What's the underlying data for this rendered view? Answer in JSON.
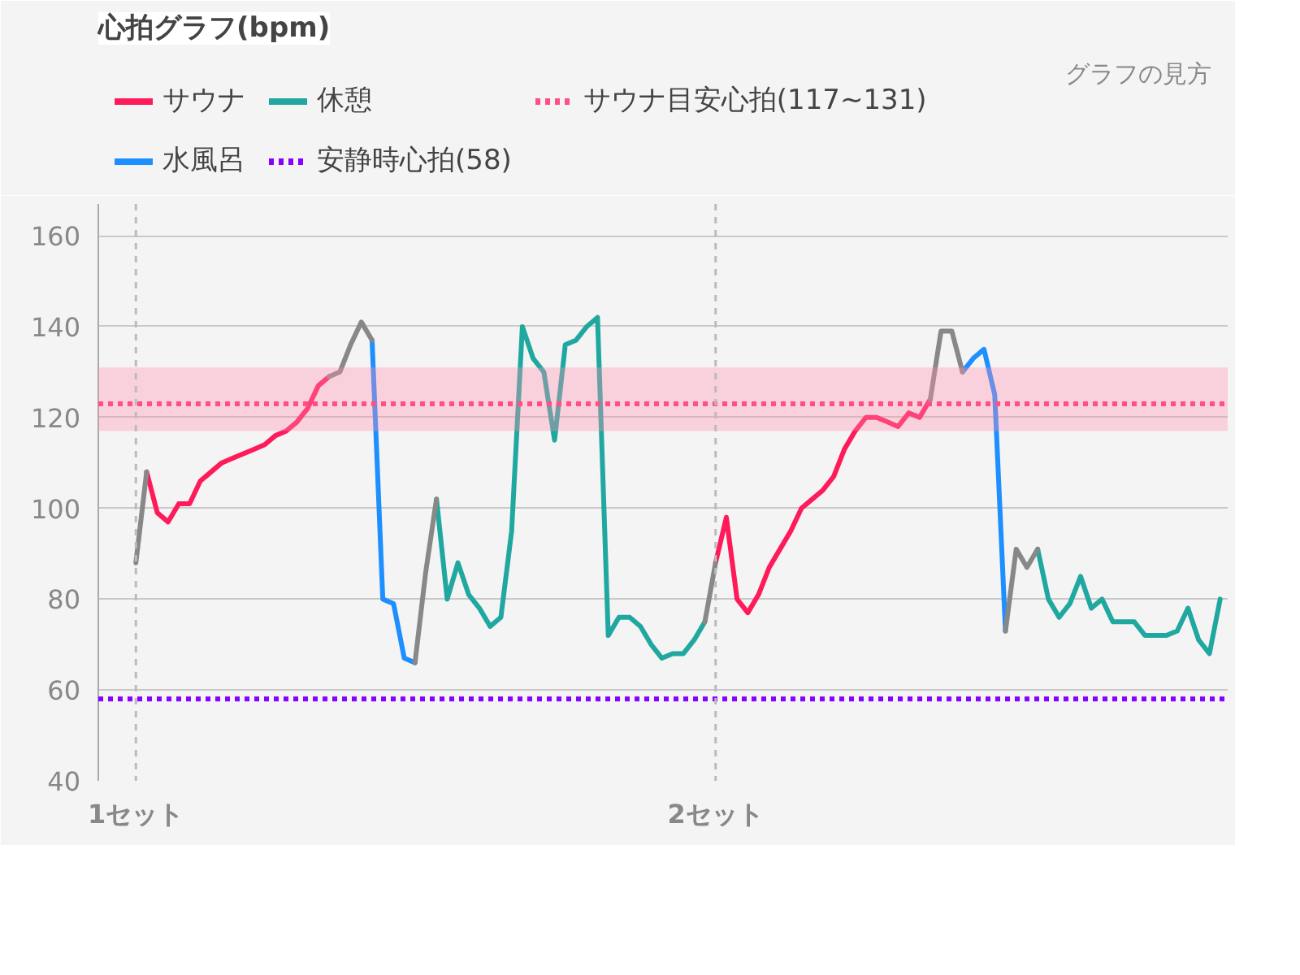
{
  "chart_data": {
    "type": "line",
    "title": "心拍グラフ(bpm)",
    "annotations": [
      "グラフの見方"
    ],
    "categories": [
      "1セット",
      null,
      null,
      null,
      null,
      null,
      null,
      null,
      null,
      null,
      null,
      null,
      null,
      null,
      null,
      null,
      null,
      null,
      null,
      null,
      null,
      null,
      null,
      null,
      null,
      null,
      null,
      null,
      null,
      null,
      null,
      null,
      null,
      null,
      null,
      null,
      null,
      null,
      null,
      null,
      null,
      null,
      null,
      null,
      null,
      null,
      null,
      null,
      null,
      null,
      null,
      null,
      null,
      null,
      "2セット",
      null,
      null,
      null,
      null,
      null,
      null,
      null,
      null,
      null,
      null,
      null,
      null,
      null,
      null,
      null,
      null,
      null,
      null,
      null,
      null,
      null,
      null,
      null,
      null,
      null,
      null,
      null,
      null,
      null,
      null,
      null,
      null,
      null,
      null,
      null,
      null,
      null,
      null,
      null,
      null,
      null,
      null,
      null,
      null,
      null,
      null,
      null
    ],
    "ylim": [
      40,
      167
    ],
    "yticks": [
      40,
      60,
      80,
      100,
      120,
      140,
      160
    ],
    "grid": "y",
    "legend": "top",
    "line_style": "solid",
    "series": [
      {
        "name": "サウナ",
        "color": "#ff1a5a",
        "values": [
          null,
          108,
          99,
          97,
          101,
          101,
          106,
          108,
          110,
          111,
          112,
          113,
          114,
          116,
          117,
          119,
          122,
          127,
          129,
          null,
          null,
          null,
          null,
          null,
          null,
          null,
          null,
          null,
          null,
          null,
          null,
          null,
          null,
          null,
          null,
          null,
          null,
          null,
          null,
          null,
          null,
          null,
          null,
          null,
          null,
          null,
          null,
          null,
          null,
          null,
          null,
          null,
          null,
          null,
          88,
          98,
          80,
          77,
          81,
          87,
          91,
          95,
          100,
          102,
          104,
          107,
          113,
          117,
          120,
          120,
          119,
          118,
          121,
          120,
          124,
          null,
          null,
          null,
          null,
          null,
          null,
          null,
          null,
          null,
          null,
          null,
          null,
          null,
          null,
          null,
          null,
          null,
          null,
          null,
          null,
          null,
          null,
          null,
          null,
          null,
          null,
          null
        ]
      },
      {
        "name": "水風呂",
        "color": "#1e8fff",
        "values": [
          null,
          null,
          null,
          null,
          null,
          null,
          null,
          null,
          null,
          null,
          null,
          null,
          null,
          null,
          null,
          null,
          null,
          null,
          null,
          null,
          null,
          null,
          137,
          80,
          79,
          67,
          66,
          null,
          null,
          null,
          null,
          null,
          null,
          null,
          null,
          null,
          null,
          null,
          null,
          null,
          null,
          null,
          null,
          null,
          null,
          null,
          null,
          null,
          null,
          null,
          null,
          null,
          null,
          null,
          null,
          null,
          null,
          null,
          null,
          null,
          null,
          null,
          null,
          null,
          null,
          null,
          null,
          null,
          null,
          null,
          null,
          null,
          null,
          null,
          null,
          null,
          null,
          130,
          133,
          135,
          125,
          73,
          null,
          null,
          null,
          null,
          null,
          null,
          null,
          null,
          null,
          null,
          null,
          null,
          null,
          null,
          null,
          null,
          null,
          null,
          null,
          null
        ]
      },
      {
        "name": "休憩",
        "color": "#20a8a0",
        "values": [
          null,
          null,
          null,
          null,
          null,
          null,
          null,
          null,
          null,
          null,
          null,
          null,
          null,
          null,
          null,
          null,
          null,
          null,
          null,
          null,
          null,
          null,
          null,
          null,
          null,
          null,
          null,
          null,
          102,
          80,
          88,
          81,
          78,
          74,
          76,
          95,
          140,
          133,
          130,
          115,
          136,
          137,
          140,
          142,
          72,
          76,
          76,
          74,
          70,
          67,
          68,
          68,
          71,
          75,
          null,
          null,
          null,
          null,
          null,
          null,
          null,
          null,
          null,
          null,
          null,
          null,
          null,
          null,
          null,
          null,
          null,
          null,
          null,
          null,
          null,
          null,
          null,
          null,
          null,
          null,
          null,
          null,
          null,
          null,
          91,
          80,
          76,
          79,
          85,
          78,
          80,
          75,
          75,
          75,
          72,
          72,
          72,
          73,
          78,
          71,
          68,
          80
        ]
      },
      {
        "color": "#888888",
        "values": [
          88,
          108,
          null,
          null,
          null,
          null,
          null,
          null,
          null,
          null,
          null,
          null,
          null,
          null,
          null,
          null,
          null,
          null,
          129,
          130,
          136,
          141,
          137,
          null,
          null,
          null,
          66,
          86,
          102,
          null,
          null,
          null,
          null,
          null,
          null,
          null,
          null,
          null,
          null,
          null,
          null,
          null,
          null,
          null,
          null,
          null,
          null,
          null,
          null,
          null,
          null,
          null,
          null,
          75,
          88,
          null,
          null,
          null,
          null,
          null,
          null,
          null,
          null,
          null,
          null,
          null,
          null,
          null,
          null,
          null,
          null,
          null,
          null,
          null,
          124,
          139,
          139,
          130,
          null,
          null,
          null,
          73,
          91,
          87,
          91,
          null,
          null,
          null,
          null,
          null,
          null,
          null,
          null,
          null,
          null,
          null,
          null,
          null,
          null,
          null,
          null,
          null
        ]
      }
    ],
    "ref_lines": [
      {
        "axis": "y",
        "value": 58,
        "label": "安静時心拍(58)",
        "color": "#8800ff",
        "line_style": "dotted"
      },
      {
        "axis": "y",
        "value": 123,
        "label": "サウナ目安心拍(117~131)",
        "color": "#ff4f84",
        "line_style": "dotted"
      },
      {
        "axis": "x",
        "value": "1セット",
        "color": "#bbbbbb",
        "line_style": "dashed"
      },
      {
        "axis": "x",
        "value": "2セット",
        "color": "#bbbbbb",
        "line_style": "dashed"
      }
    ],
    "bands": [
      {
        "axis": "y",
        "from": 117,
        "to": 131,
        "color": "#ff90b0"
      }
    ]
  }
}
